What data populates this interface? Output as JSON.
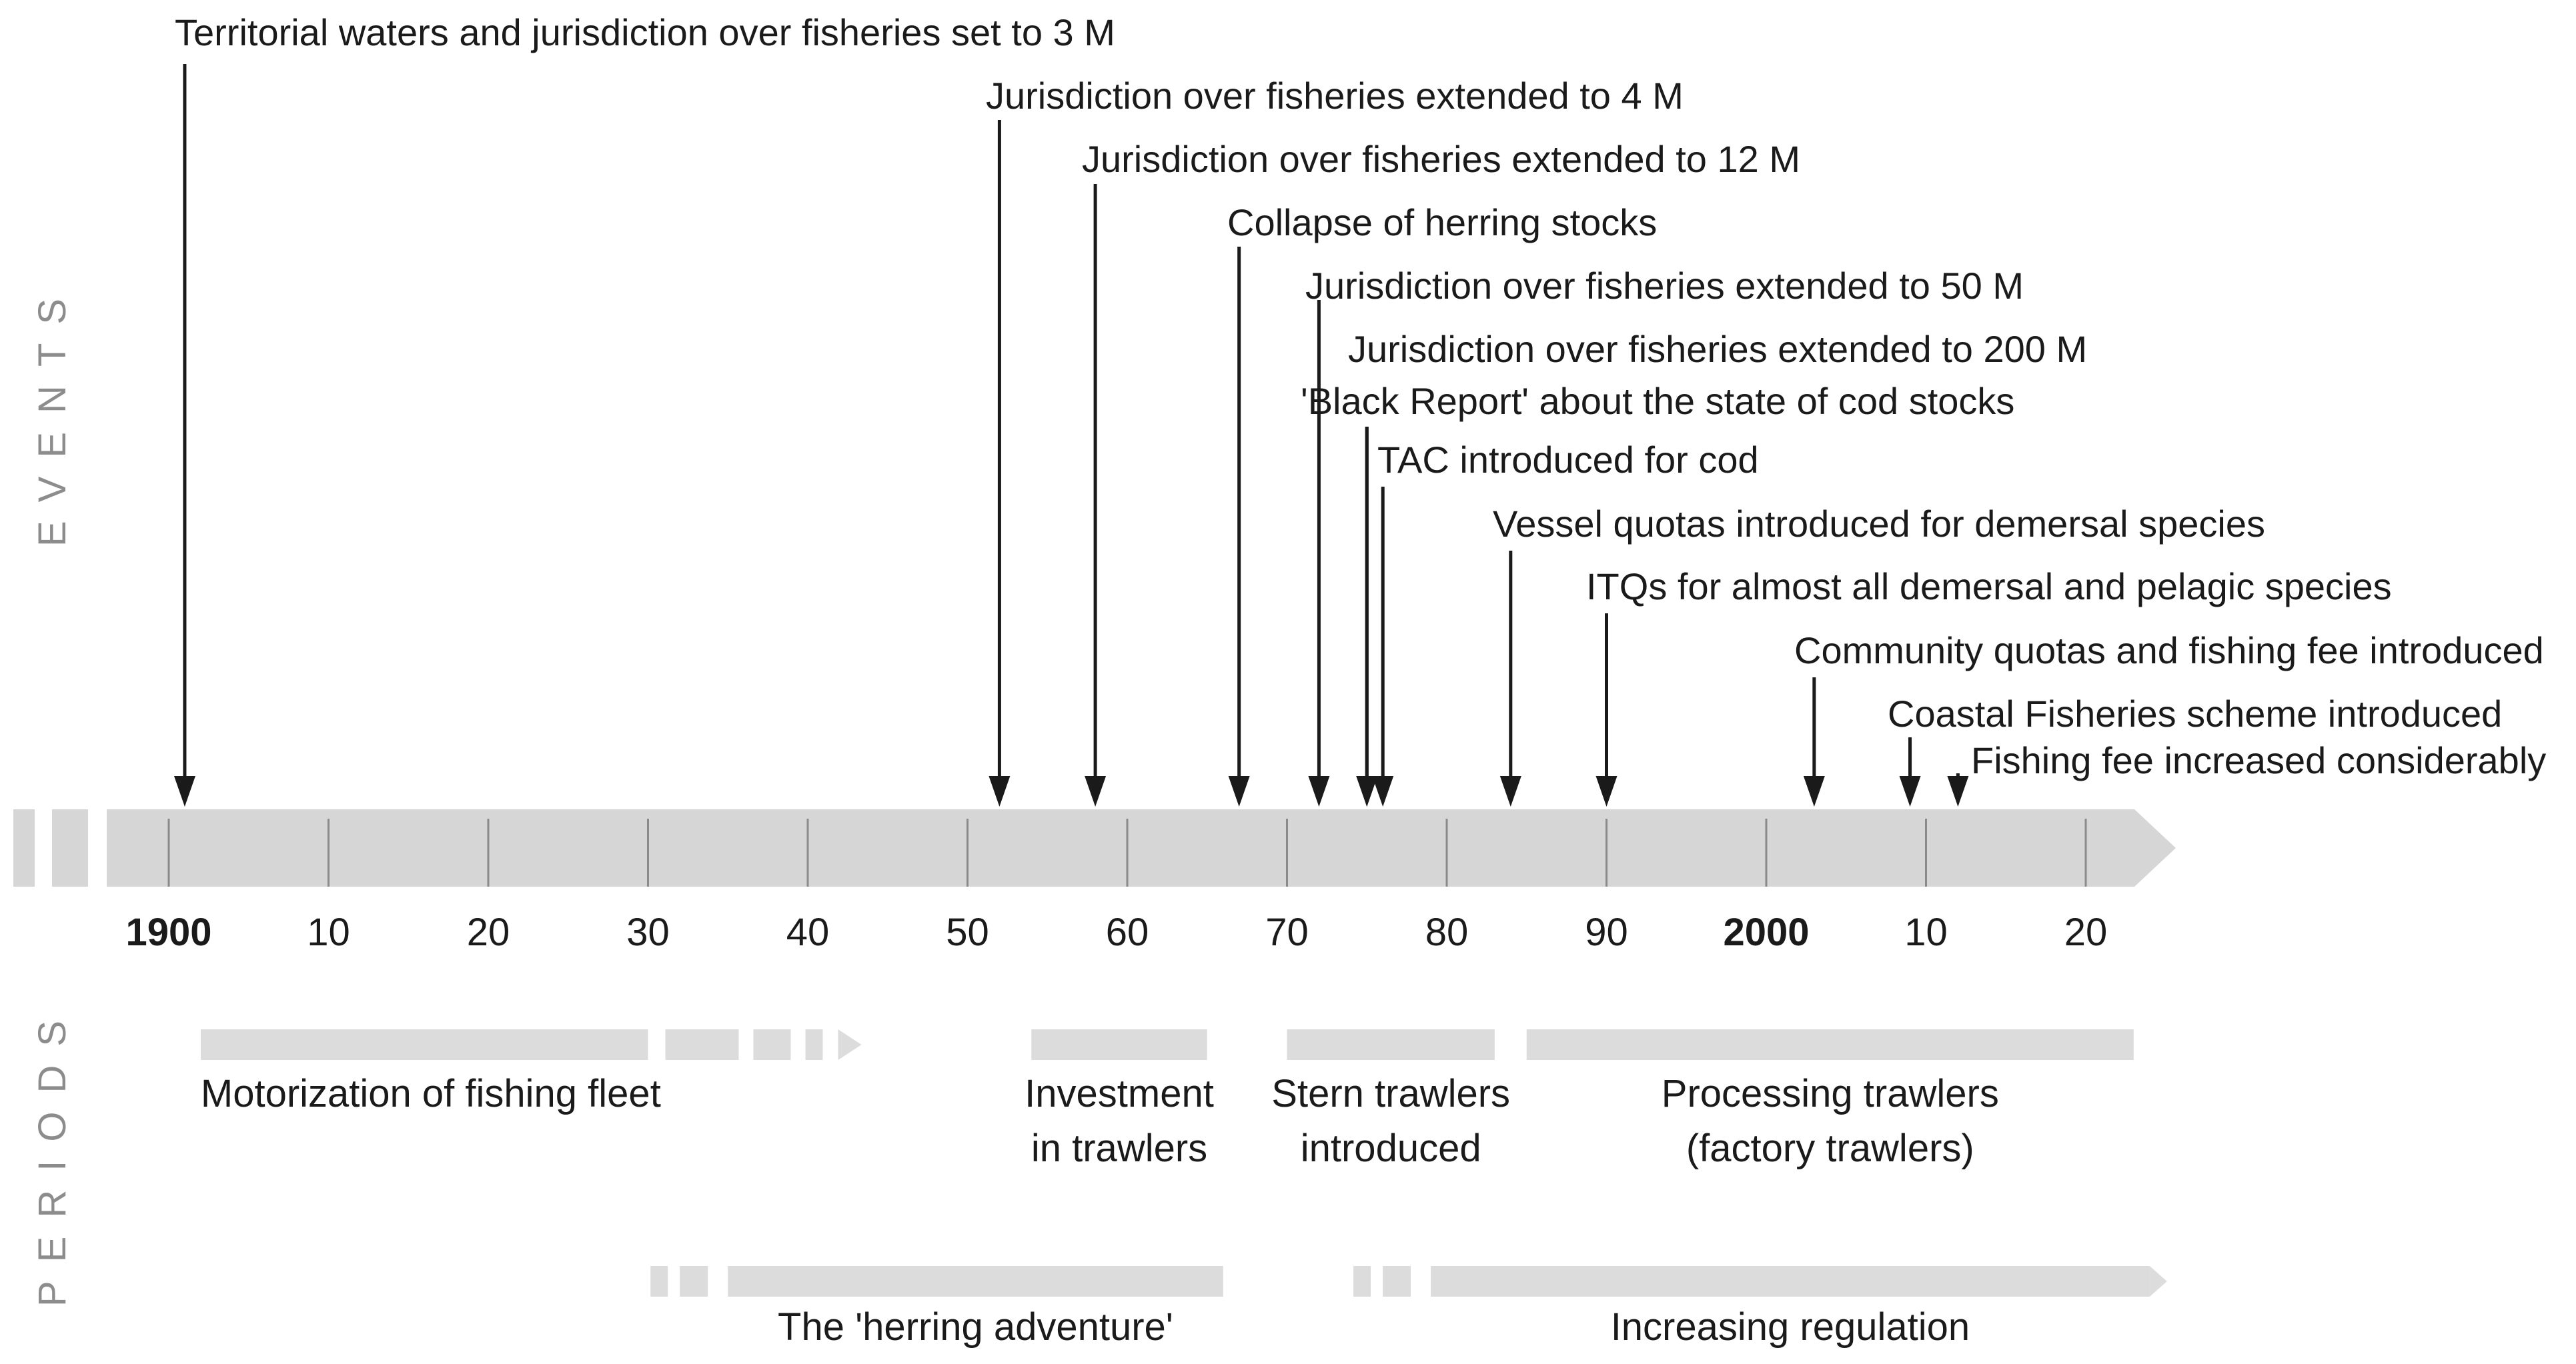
{
  "side_titles": {
    "events": "EVENTS",
    "periods": "PERIODS"
  },
  "colors": {
    "axis_fill": "#d6d6d6",
    "period_fill": "#dcdcdc",
    "tick": "#8a8a8a",
    "text": "#1a1a1a",
    "arrow": "#1a1a1a"
  },
  "axis": {
    "ticks": [
      {
        "year": 1900,
        "label": "1900",
        "major": true
      },
      {
        "year": 1910,
        "label": "10",
        "major": false
      },
      {
        "year": 1920,
        "label": "20",
        "major": false
      },
      {
        "year": 1930,
        "label": "30",
        "major": false
      },
      {
        "year": 1940,
        "label": "40",
        "major": false
      },
      {
        "year": 1950,
        "label": "50",
        "major": false
      },
      {
        "year": 1960,
        "label": "60",
        "major": false
      },
      {
        "year": 1970,
        "label": "70",
        "major": false
      },
      {
        "year": 1980,
        "label": "80",
        "major": false
      },
      {
        "year": 1990,
        "label": "90",
        "major": false
      },
      {
        "year": 2000,
        "label": "2000",
        "major": true
      },
      {
        "year": 2010,
        "label": "10",
        "major": false
      },
      {
        "year": 2020,
        "label": "20",
        "major": false
      }
    ]
  },
  "events": [
    {
      "year": 1901,
      "label": "Territorial waters and jurisdiction over fisheries set to 3 M"
    },
    {
      "year": 1952,
      "label": "Jurisdiction over fisheries extended to 4 M"
    },
    {
      "year": 1958,
      "label": "Jurisdiction over fisheries extended to 12 M"
    },
    {
      "year": 1967,
      "label": "Collapse of herring stocks"
    },
    {
      "year": 1972,
      "label": "Jurisdiction over fisheries extended to 50 M"
    },
    {
      "year": 1975,
      "label": "Jurisdiction over fisheries extended to 200 M"
    },
    {
      "year": 1975,
      "label": "'Black Report' about the state of cod stocks"
    },
    {
      "year": 1976,
      "label": "TAC introduced for cod"
    },
    {
      "year": 1984,
      "label": "Vessel quotas introduced for demersal species"
    },
    {
      "year": 1990,
      "label": "ITQs for almost all demersal and pelagic species"
    },
    {
      "year": 2003,
      "label": "Community quotas and fishing fee introduced"
    },
    {
      "year": 2009,
      "label": "Coastal Fisheries scheme introduced"
    },
    {
      "year": 2012,
      "label": "Fishing fee increased considerably"
    }
  ],
  "periods": [
    {
      "start": 1902,
      "end": 1930,
      "lines": [
        "Motorization of fishing fleet"
      ],
      "align": "start",
      "row": 1,
      "fade": "end"
    },
    {
      "start": 1954,
      "end": 1965,
      "lines": [
        "Investment",
        "in trawlers"
      ],
      "align": "middle",
      "row": 1,
      "fade": "none"
    },
    {
      "start": 1970,
      "end": 1983,
      "lines": [
        "Stern trawlers",
        "introduced"
      ],
      "align": "middle",
      "row": 1,
      "fade": "none"
    },
    {
      "start": 1985,
      "end": 2023,
      "lines": [
        "Processing trawlers",
        "(factory trawlers)"
      ],
      "align": "middle",
      "row": 1,
      "fade": "none"
    },
    {
      "start": 1935,
      "end": 1966,
      "lines": [
        "The 'herring adventure'"
      ],
      "align": "middle",
      "row": 2,
      "fade": "start"
    },
    {
      "start": 1979,
      "end": 2024,
      "lines": [
        "Increasing regulation"
      ],
      "align": "middle",
      "row": 2,
      "fade": "start-arrow"
    }
  ]
}
